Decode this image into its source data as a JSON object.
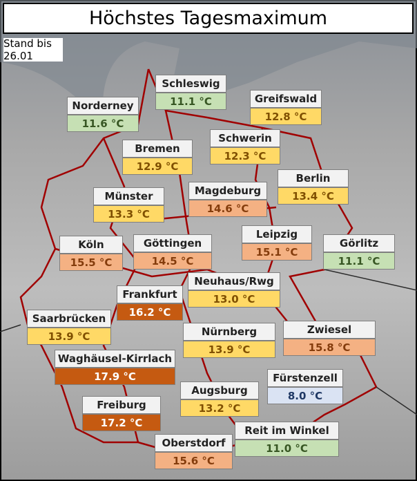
{
  "header": {
    "title": "Höchstes Tagesmaximum",
    "stand": "Stand bis 26.01"
  },
  "stations": [
    {
      "name": "Schleswig",
      "value": "11.1 °C",
      "color": "#c6e0b4",
      "text_color": "#375623"
    },
    {
      "name": "Norderney",
      "value": "11.6 °C",
      "color": "#c6e0b4",
      "text_color": "#375623"
    },
    {
      "name": "Greifswald",
      "value": "12.8 °C",
      "color": "#ffd966",
      "text_color": "#7f4f00"
    },
    {
      "name": "Bremen",
      "value": "12.9 °C",
      "color": "#ffd966",
      "text_color": "#7f4f00"
    },
    {
      "name": "Schwerin",
      "value": "12.3 °C",
      "color": "#ffd966",
      "text_color": "#7f4f00"
    },
    {
      "name": "Berlin",
      "value": "13.4 °C",
      "color": "#ffd966",
      "text_color": "#7f4f00"
    },
    {
      "name": "Münster",
      "value": "13.3 °C",
      "color": "#ffd966",
      "text_color": "#7f4f00"
    },
    {
      "name": "Magdeburg",
      "value": "14.6 °C",
      "color": "#f4b183",
      "text_color": "#843c0c"
    },
    {
      "name": "Leipzig",
      "value": "15.1 °C",
      "color": "#f4b183",
      "text_color": "#843c0c"
    },
    {
      "name": "Görlitz",
      "value": "11.1 °C",
      "color": "#c6e0b4",
      "text_color": "#375623"
    },
    {
      "name": "Köln",
      "value": "15.5 °C",
      "color": "#f4b183",
      "text_color": "#843c0c"
    },
    {
      "name": "Göttingen",
      "value": "14.5 °C",
      "color": "#f4b183",
      "text_color": "#843c0c"
    },
    {
      "name": "Neuhaus/Rwg",
      "value": "13.0 °C",
      "color": "#ffd966",
      "text_color": "#7f4f00"
    },
    {
      "name": "Frankfurt",
      "value": "16.2 °C",
      "color": "#c55a11",
      "text_color": "#ffffff"
    },
    {
      "name": "Saarbrücken",
      "value": "13.9 °C",
      "color": "#ffd966",
      "text_color": "#7f4f00"
    },
    {
      "name": "Zwiesel",
      "value": "15.8 °C",
      "color": "#f4b183",
      "text_color": "#843c0c"
    },
    {
      "name": "Nürnberg",
      "value": "13.9 °C",
      "color": "#ffd966",
      "text_color": "#7f4f00"
    },
    {
      "name": "Waghäusel-Kirrlach",
      "value": "17.9 °C",
      "color": "#c55a11",
      "text_color": "#ffffff"
    },
    {
      "name": "Fürstenzell",
      "value": "8.0 °C",
      "color": "#dae3f3",
      "text_color": "#1f3864"
    },
    {
      "name": "Augsburg",
      "value": "13.2 °C",
      "color": "#ffd966",
      "text_color": "#7f4f00"
    },
    {
      "name": "Freiburg",
      "value": "17.2 °C",
      "color": "#c55a11",
      "text_color": "#ffffff"
    },
    {
      "name": "Reit im Winkel",
      "value": "11.0 °C",
      "color": "#c6e0b4",
      "text_color": "#375623"
    },
    {
      "name": "Oberstdorf",
      "value": "15.6 °C",
      "color": "#f4b183",
      "text_color": "#843c0c"
    }
  ]
}
